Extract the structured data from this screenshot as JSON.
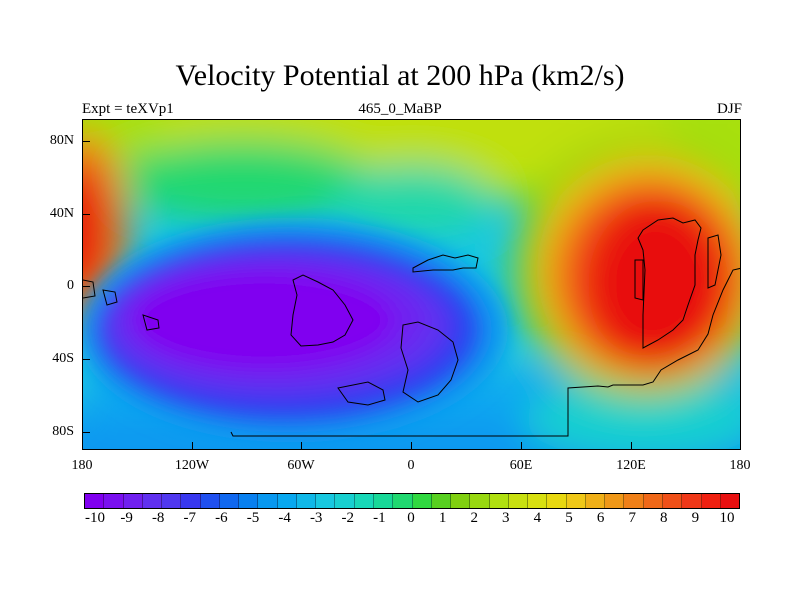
{
  "title": "Velocity Potential at 200 hPa (km2/s)",
  "subtitle_left": "Expt = teXVp1",
  "subtitle_center": "465_0_MaBP",
  "subtitle_right": "DJF",
  "lat_labels": [
    "80N",
    "40N",
    "0",
    "40S",
    "80S"
  ],
  "lon_labels": [
    "180",
    "120W",
    "60W",
    "0",
    "60E",
    "120E",
    "180"
  ],
  "colorbar": {
    "labels": [
      "-10",
      "-9",
      "-8",
      "-7",
      "-6",
      "-5",
      "-4",
      "-3",
      "-2",
      "-1",
      "0",
      "1",
      "2",
      "3",
      "4",
      "5",
      "6",
      "7",
      "8",
      "9",
      "10"
    ],
    "colors": [
      "#8000f0",
      "#7a10f0",
      "#7020f0",
      "#6030f0",
      "#5038f0",
      "#3838f0",
      "#2050f0",
      "#1068f0",
      "#0880f0",
      "#0898f0",
      "#08a8f0",
      "#10b8e8",
      "#18c8e0",
      "#18d0d0",
      "#18d8b8",
      "#18d898",
      "#20d870",
      "#30d840",
      "#58d020",
      "#80d010",
      "#98d810",
      "#b0e010",
      "#c8e010",
      "#d8e010",
      "#e8d810",
      "#f0c818",
      "#f0b018",
      "#f09818",
      "#f08018",
      "#f06818",
      "#f05018",
      "#f03818",
      "#f02010",
      "#e81010"
    ]
  },
  "colors": {
    "background": "#ffffff",
    "ocean_base": "#18c8e8",
    "coastline": "#000000"
  }
}
